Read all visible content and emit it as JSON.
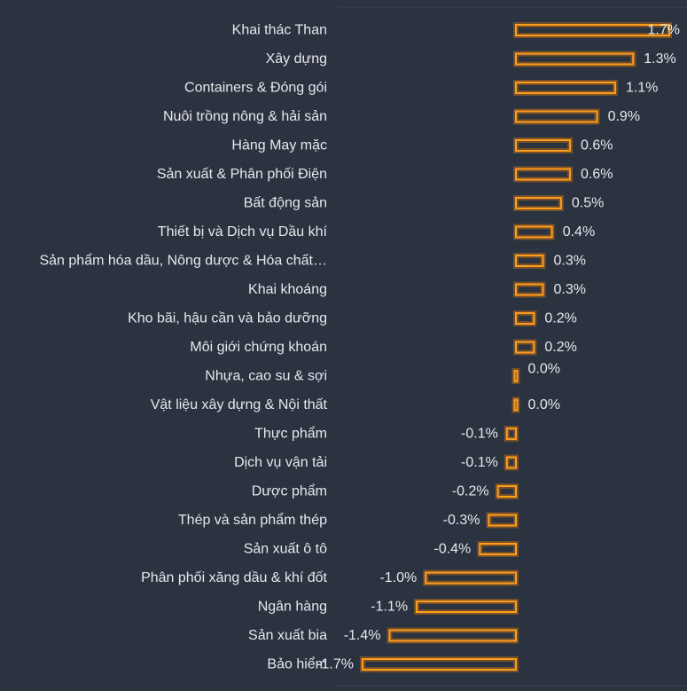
{
  "colors": {
    "background": "#2b3240",
    "bar_stroke": "#ff9d1e",
    "bar_glow": "#ff8a00",
    "text": "#e6e8ec",
    "divider": "#3a4252"
  },
  "chart_data": {
    "type": "bar",
    "orientation": "horizontal",
    "grid": false,
    "legend": "none",
    "xlim": [
      -1.7,
      1.7
    ],
    "categories": [
      "Khai thác Than",
      "Xây dựng",
      "Containers & Đóng gói",
      "Nuôi trồng nông & hải sản",
      "Hàng May mặc",
      "Sản xuất & Phân phối Điện",
      "Bất động sản",
      "Thiết bị và Dịch vụ Dầu khí",
      "Sản phẩm hóa dầu, Nông dược & Hóa chất…",
      "Khai khoáng",
      "Kho bãi, hậu cần và bảo dưỡng",
      "Môi giới chứng khoán",
      "Nhựa, cao su & sợi",
      "Vật liệu xây dựng & Nội thất",
      "Thực phẩm",
      "Dịch vụ vận tải",
      "Dược phẩm",
      "Thép và sản phẩm thép",
      "Sản xuất ô tô",
      "Phân phối xăng dầu & khí đốt",
      "Ngân hàng",
      "Sản xuất bia",
      "Bảo hiểm"
    ],
    "values": [
      1.7,
      1.3,
      1.1,
      0.9,
      0.6,
      0.6,
      0.5,
      0.4,
      0.3,
      0.3,
      0.2,
      0.2,
      0.0,
      0.0,
      -0.1,
      -0.1,
      -0.2,
      -0.3,
      -0.4,
      -1.0,
      -1.1,
      -1.4,
      -1.7
    ],
    "value_labels": [
      "1.7%",
      "1.3%",
      "1.1%",
      "0.9%",
      "0.6%",
      "0.6%",
      "0.5%",
      "0.4%",
      "0.3%",
      "0.3%",
      "0.2%",
      "0.2%",
      "0.0%",
      "0.0%",
      "-0.1%",
      "-0.1%",
      "-0.2%",
      "-0.3%",
      "-0.4%",
      "-1.0%",
      "-1.1%",
      "-1.4%",
      "-1.7%"
    ]
  }
}
